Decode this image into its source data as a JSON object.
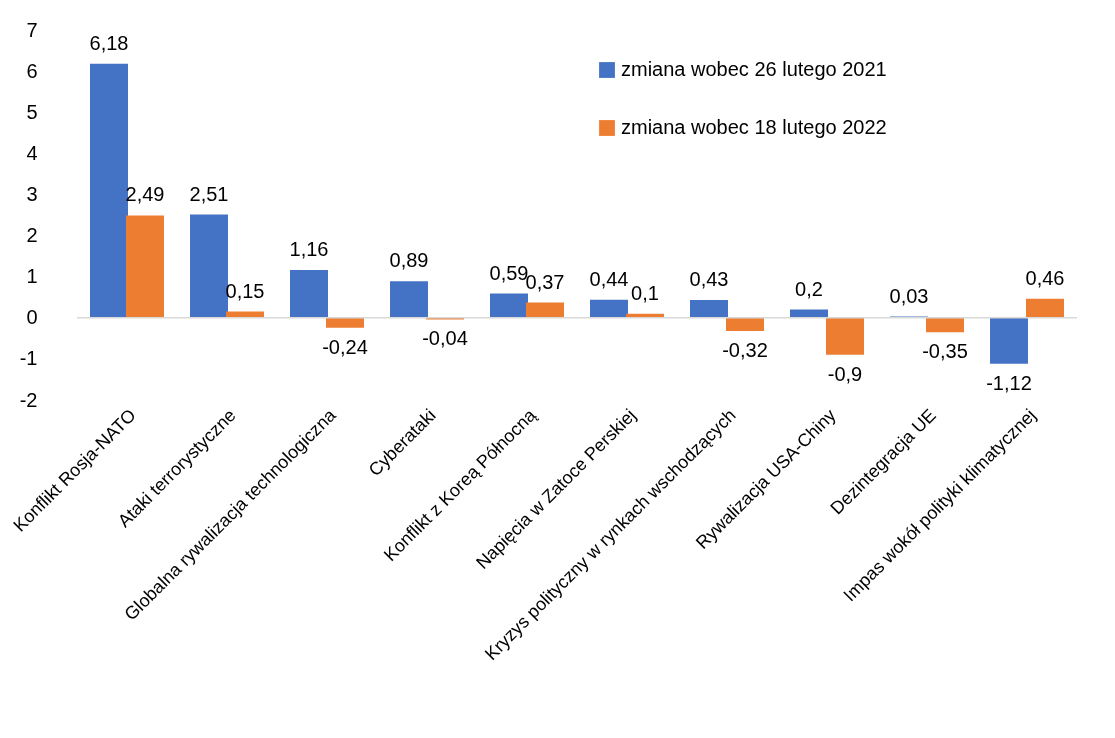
{
  "chart_data": {
    "type": "bar",
    "categories": [
      "Konflikt Rosja-NATO",
      "Ataki terrorystyczne",
      "Globalna rywalizacja technologiczna",
      "Cyberataki",
      "Konflikt z Koreą Północną",
      "Napięcia w Zatoce Perskiej",
      "Kryzys polityczny w rynkach wschodzących",
      "Rywalizacja USA-Chiny",
      "Dezintegracja UE",
      "Impas wokół polityki klimatycznej"
    ],
    "series": [
      {
        "name": "zmiana wobec 26 lutego 2021",
        "color": "#4472c4",
        "values": [
          6.18,
          2.51,
          1.16,
          0.89,
          0.59,
          0.44,
          0.43,
          0.2,
          0.03,
          -1.12
        ],
        "value_labels": [
          "6,18",
          "2,51",
          "1,16",
          "0,89",
          "0,59",
          "0,44",
          "0,43",
          "0,2",
          "0,03",
          "-1,12"
        ]
      },
      {
        "name": "zmiana wobec 18 lutego 2022",
        "color": "#ed7d31",
        "values": [
          2.49,
          0.15,
          -0.24,
          -0.04,
          0.37,
          0.1,
          -0.32,
          -0.9,
          -0.35,
          0.46
        ],
        "value_labels": [
          "2,49",
          "0,15",
          "-0,24",
          "-0,04",
          "0,37",
          "0,1",
          "-0,32",
          "-0,9",
          "-0,35",
          "0,46"
        ]
      }
    ],
    "ylim": [
      -2,
      7
    ],
    "yticks": [
      -2,
      -1,
      0,
      1,
      2,
      3,
      4,
      5,
      6,
      7
    ],
    "grid": false,
    "ref_lines": [
      {
        "axis": "y",
        "value": 0,
        "color": "#d9d9d9"
      }
    ],
    "legend": "top right"
  }
}
